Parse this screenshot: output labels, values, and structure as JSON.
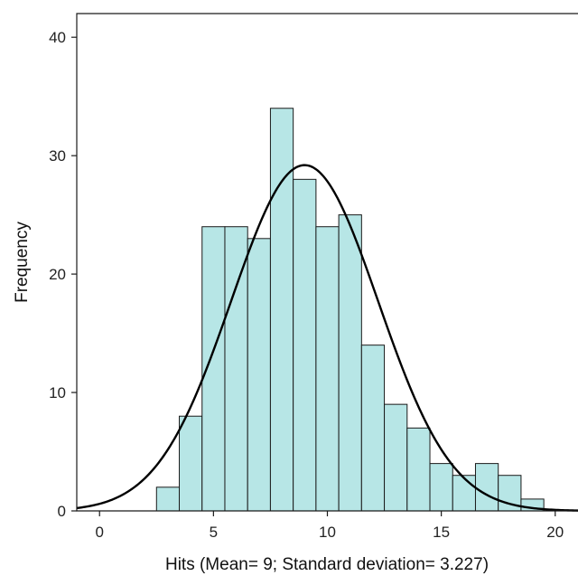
{
  "chart_data": {
    "type": "bar",
    "subtype": "histogram",
    "title": "",
    "xlabel": "Hits (Mean= 9; Standard deviation= 3.227)",
    "ylabel": "Frequency",
    "xlim": [
      -1,
      21
    ],
    "ylim": [
      0,
      42
    ],
    "bin_width": 1,
    "bins": [
      {
        "start": 2.5,
        "end": 3.5,
        "count": 2
      },
      {
        "start": 3.5,
        "end": 4.5,
        "count": 8
      },
      {
        "start": 4.5,
        "end": 5.5,
        "count": 24
      },
      {
        "start": 5.5,
        "end": 6.5,
        "count": 24
      },
      {
        "start": 6.5,
        "end": 7.5,
        "count": 23
      },
      {
        "start": 7.5,
        "end": 8.5,
        "count": 34
      },
      {
        "start": 8.5,
        "end": 9.5,
        "count": 28
      },
      {
        "start": 9.5,
        "end": 10.5,
        "count": 24
      },
      {
        "start": 10.5,
        "end": 11.5,
        "count": 25
      },
      {
        "start": 11.5,
        "end": 12.5,
        "count": 14
      },
      {
        "start": 12.5,
        "end": 13.5,
        "count": 9
      },
      {
        "start": 13.5,
        "end": 14.5,
        "count": 7
      },
      {
        "start": 14.5,
        "end": 15.5,
        "count": 4
      },
      {
        "start": 15.5,
        "end": 16.5,
        "count": 3
      },
      {
        "start": 16.5,
        "end": 17.5,
        "count": 4
      },
      {
        "start": 17.5,
        "end": 18.5,
        "count": 3
      },
      {
        "start": 18.5,
        "end": 19.5,
        "count": 1
      }
    ],
    "normal_curve": {
      "mean": 9,
      "sd": 3.227,
      "peak": 29.2
    },
    "x_ticks": [
      0,
      5,
      10,
      15,
      20
    ],
    "x_tick_labels": [
      "0",
      "5",
      "10",
      "15",
      "20"
    ],
    "y_ticks": [
      0,
      10,
      20,
      30,
      40
    ],
    "y_tick_labels": [
      "0",
      "10",
      "20",
      "30",
      "40"
    ],
    "grid": false,
    "colors": {
      "bar_fill": "#b7e6e6",
      "bar_stroke": "#1a1a1a",
      "curve": "#000000"
    }
  }
}
